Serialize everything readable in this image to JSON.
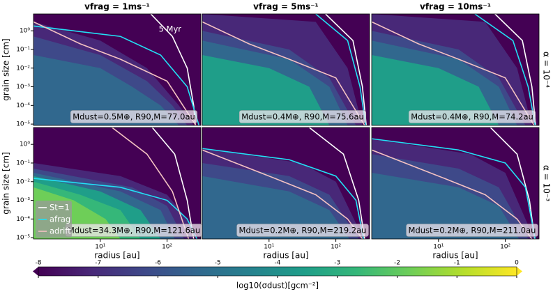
{
  "chart_data": [
    {
      "type": "contour",
      "title": "vfrag = 1ms⁻¹",
      "ylabel": "grain size [cm]",
      "time_label": "5 Myr",
      "annotation": "Mdust=0.5M⊕, R90,M=77.0au",
      "xlim": [
        1,
        320
      ],
      "ylim": [
        8.5e-06,
        8
      ],
      "log_x": true,
      "log_y": true,
      "yticks": [
        {
          "value": 1,
          "label": "10⁰"
        },
        {
          "value": 0.1,
          "label": "10⁻¹"
        },
        {
          "value": 0.01,
          "label": "10⁻²"
        },
        {
          "value": 0.001,
          "label": "10⁻³"
        },
        {
          "value": 0.0001,
          "label": "10⁻⁴"
        },
        {
          "value": 1e-05,
          "label": "10⁻⁵"
        }
      ],
      "levels": [
        {
          "level": -7,
          "x": [
            1,
            10,
            50,
            150,
            250
          ],
          "y": [
            3,
            0.3,
            0.01,
            0.0001,
            8.5e-06
          ]
        },
        {
          "level": -6,
          "x": [
            1,
            10,
            50,
            120,
            200
          ],
          "y": [
            0.5,
            0.05,
            0.002,
            0.0001,
            8.5e-06
          ]
        },
        {
          "level": -5,
          "x": [
            1,
            10,
            30,
            80,
            150
          ],
          "y": [
            0.05,
            0.01,
            0.001,
            0.0001,
            8.5e-06
          ]
        }
      ],
      "series": [
        {
          "color": "#ffffff",
          "x": [
            57,
            120,
            200,
            250,
            265
          ],
          "values": [
            8,
            0.5,
            0.01,
            0.0001,
            8.5e-06
          ]
        },
        {
          "color": "#22e0f5",
          "x": [
            1,
            20,
            80,
            200,
            300
          ],
          "values": [
            1.8,
            0.5,
            0.05,
            0.001,
            8.5e-06
          ]
        },
        {
          "color": "#f4c2c2",
          "x": [
            1,
            5,
            20,
            100,
            270
          ],
          "values": [
            3,
            0.2,
            0.03,
            0.002,
            8.5e-06
          ]
        }
      ]
    },
    {
      "type": "contour",
      "title": "vfrag = 5ms⁻¹",
      "annotation": "Mdust=0.4M⊕, R90,M=75.6au",
      "xlim": [
        1,
        320
      ],
      "ylim": [
        8.5e-06,
        8
      ],
      "log_x": true,
      "log_y": true,
      "levels": [
        {
          "level": -7,
          "x": [
            1,
            50,
            150,
            250
          ],
          "y": [
            8,
            3,
            0.01,
            8.5e-06
          ]
        },
        {
          "level": -6,
          "x": [
            1,
            20,
            80,
            200
          ],
          "y": [
            1,
            0.1,
            0.003,
            8.5e-06
          ]
        },
        {
          "level": -5,
          "x": [
            1,
            20,
            80,
            150
          ],
          "y": [
            0.3,
            0.03,
            0.001,
            8.5e-06
          ]
        },
        {
          "level": -4,
          "x": [
            1,
            10,
            40,
            80
          ],
          "y": [
            0.05,
            0.01,
            0.001,
            8.5e-06
          ]
        }
      ],
      "series": [
        {
          "color": "#ffffff",
          "x": [
            70,
            180,
            250,
            285
          ],
          "values": [
            8,
            0.3,
            0.001,
            8.5e-06
          ]
        },
        {
          "color": "#22e0f5",
          "x": [
            50,
            150,
            230,
            280
          ],
          "values": [
            8,
            0.3,
            0.001,
            8.5e-06
          ]
        },
        {
          "color": "#f4c2c2",
          "x": [
            1,
            5,
            20,
            100,
            270
          ],
          "values": [
            3,
            0.2,
            0.03,
            0.003,
            8.5e-06
          ]
        }
      ]
    },
    {
      "type": "contour",
      "title": "vfrag = 10ms⁻¹",
      "row_label": "α = 10⁻⁴",
      "annotation": "Mdust=0.4M⊕, R90,M=74.2au",
      "xlim": [
        1,
        320
      ],
      "ylim": [
        8.5e-06,
        8
      ],
      "log_x": true,
      "log_y": true,
      "levels": [
        {
          "level": -7,
          "x": [
            1,
            50,
            150,
            250
          ],
          "y": [
            8,
            3,
            0.01,
            8.5e-06
          ]
        },
        {
          "level": -6,
          "x": [
            1,
            20,
            80,
            200
          ],
          "y": [
            1,
            0.1,
            0.003,
            8.5e-06
          ]
        },
        {
          "level": -5,
          "x": [
            1,
            20,
            80,
            150
          ],
          "y": [
            0.3,
            0.03,
            0.001,
            8.5e-06
          ]
        },
        {
          "level": -4,
          "x": [
            1,
            10,
            40,
            80
          ],
          "y": [
            0.05,
            0.01,
            0.001,
            8.5e-06
          ]
        }
      ],
      "series": [
        {
          "color": "#ffffff",
          "x": [
            70,
            180,
            250,
            285
          ],
          "values": [
            8,
            0.3,
            0.001,
            8.5e-06
          ]
        },
        {
          "color": "#22e0f5",
          "x": [
            35,
            130,
            220,
            280
          ],
          "values": [
            8,
            0.3,
            0.001,
            8.5e-06
          ]
        },
        {
          "color": "#f4c2c2",
          "x": [
            1,
            5,
            20,
            100,
            270
          ],
          "values": [
            3,
            0.2,
            0.03,
            0.003,
            8.5e-06
          ]
        }
      ]
    },
    {
      "type": "contour",
      "xlabel": "radius [au]",
      "ylabel": "grain size [cm]",
      "annotation": "Mdust=34.3M⊕, R90,M=121.6au",
      "legend": "lower left",
      "xlim": [
        1,
        320
      ],
      "ylim": [
        8.5e-06,
        8
      ],
      "log_x": true,
      "log_y": true,
      "xticks": [
        {
          "value": 10,
          "label": "10¹"
        },
        {
          "value": 100,
          "label": "10²"
        }
      ],
      "yticks": [
        {
          "value": 1,
          "label": "10⁰"
        },
        {
          "value": 0.1,
          "label": "10⁻¹"
        },
        {
          "value": 0.01,
          "label": "10⁻²"
        },
        {
          "value": 0.001,
          "label": "10⁻³"
        },
        {
          "value": 0.0001,
          "label": "10⁻⁴"
        },
        {
          "value": 1e-05,
          "label": "10⁻⁵"
        }
      ],
      "levels": [
        {
          "level": -7,
          "x": [
            1,
            20,
            100,
            200,
            240
          ],
          "y": [
            0.1,
            0.02,
            0.002,
            0.0001,
            8.5e-06
          ]
        },
        {
          "level": -6,
          "x": [
            1,
            30,
            100,
            180
          ],
          "y": [
            0.05,
            0.005,
            0.0005,
            8.5e-06
          ]
        },
        {
          "level": -5,
          "x": [
            1,
            20,
            80,
            130
          ],
          "y": [
            0.03,
            0.003,
            0.0003,
            8.5e-06
          ]
        },
        {
          "level": -4,
          "x": [
            1,
            10,
            40,
            80
          ],
          "y": [
            0.02,
            0.003,
            0.0003,
            8.5e-06
          ]
        },
        {
          "level": -3,
          "x": [
            1,
            5,
            20,
            40
          ],
          "y": [
            0.01,
            0.002,
            0.0003,
            8.5e-06
          ]
        },
        {
          "level": -2,
          "x": [
            1,
            4,
            12,
            20
          ],
          "y": [
            0.005,
            0.001,
            0.0001,
            8.5e-06
          ]
        }
      ],
      "series": [
        {
          "name": "St=1",
          "color": "#ffffff",
          "x": [
            60,
            130,
            200,
            250
          ],
          "values": [
            8,
            0.3,
            0.001,
            8.5e-06
          ]
        },
        {
          "name": "afrag",
          "color": "#22e0f5",
          "x": [
            1,
            20,
            100,
            200,
            280
          ],
          "values": [
            0.015,
            0.005,
            0.001,
            0.0001,
            8.5e-06
          ]
        },
        {
          "name": "adrift",
          "color": "#f4c2c2",
          "x": [
            15,
            50,
            120,
            210
          ],
          "values": [
            8,
            0.3,
            0.003,
            8.5e-06
          ]
        }
      ]
    },
    {
      "type": "contour",
      "xlabel": "radius [au]",
      "annotation": "Mdust=0.2M⊕, R90,M=219.2au",
      "xlim": [
        1,
        320
      ],
      "ylim": [
        8.5e-06,
        8
      ],
      "log_x": true,
      "log_y": true,
      "xticks": [
        {
          "value": 10,
          "label": "10¹"
        },
        {
          "value": 100,
          "label": "10²"
        }
      ],
      "levels": [
        {
          "level": -7,
          "x": [
            1,
            30,
            100,
            260
          ],
          "y": [
            0.6,
            0.1,
            0.01,
            8.5e-06
          ]
        },
        {
          "level": -6,
          "x": [
            1,
            20,
            80,
            220
          ],
          "y": [
            0.1,
            0.02,
            0.002,
            8.5e-06
          ]
        },
        {
          "level": -5,
          "x": [
            1,
            20,
            80,
            160
          ],
          "y": [
            0.02,
            0.003,
            0.0003,
            8.5e-06
          ]
        }
      ],
      "series": [
        {
          "color": "#ffffff",
          "x": [
            40,
            130,
            220,
            270
          ],
          "values": [
            8,
            0.3,
            0.001,
            8.5e-06
          ]
        },
        {
          "color": "#22e0f5",
          "x": [
            1,
            20,
            100,
            200,
            260
          ],
          "values": [
            0.6,
            0.15,
            0.02,
            0.001,
            8.5e-06
          ]
        },
        {
          "color": "#f4c2c2",
          "x": [
            1,
            10,
            50,
            150,
            250
          ],
          "values": [
            0.5,
            0.02,
            0.002,
            0.0001,
            8.5e-06
          ]
        }
      ]
    },
    {
      "type": "contour",
      "xlabel": "radius [au]",
      "row_label": "α = 10⁻³",
      "annotation": "Mdust=0.2M⊕, R90,M=211.0au",
      "xlim": [
        1,
        320
      ],
      "ylim": [
        8.5e-06,
        8
      ],
      "log_x": true,
      "log_y": true,
      "xticks": [
        {
          "value": 10,
          "label": "10¹"
        },
        {
          "value": 100,
          "label": "10²"
        }
      ],
      "levels": [
        {
          "level": -7,
          "x": [
            1,
            30,
            100,
            270
          ],
          "y": [
            2,
            0.3,
            0.03,
            8.5e-06
          ]
        },
        {
          "level": -6,
          "x": [
            1,
            20,
            80,
            220
          ],
          "y": [
            0.3,
            0.05,
            0.005,
            8.5e-06
          ]
        },
        {
          "level": -5,
          "x": [
            1,
            20,
            80,
            160
          ],
          "y": [
            0.03,
            0.005,
            0.0005,
            8.5e-06
          ]
        }
      ],
      "series": [
        {
          "color": "#ffffff",
          "x": [
            60,
            150,
            230,
            275
          ],
          "values": [
            8,
            0.3,
            0.001,
            8.5e-06
          ]
        },
        {
          "color": "#22e0f5",
          "x": [
            1,
            20,
            100,
            200,
            280
          ],
          "values": [
            2,
            0.5,
            0.1,
            0.005,
            8.5e-06
          ]
        },
        {
          "color": "#f4c2c2",
          "x": [
            1,
            10,
            50,
            150,
            250
          ],
          "values": [
            0.5,
            0.02,
            0.002,
            0.0001,
            8.5e-06
          ]
        }
      ]
    },
    {
      "type": "colorbar",
      "label": "log10(σdust)[gcm⁻²]",
      "colormap": "viridis",
      "extend": "both",
      "xlim": [
        -8,
        0
      ],
      "xticks": [
        -8,
        -7,
        -6,
        -5,
        -4,
        -3,
        -2,
        -1,
        0
      ]
    }
  ]
}
